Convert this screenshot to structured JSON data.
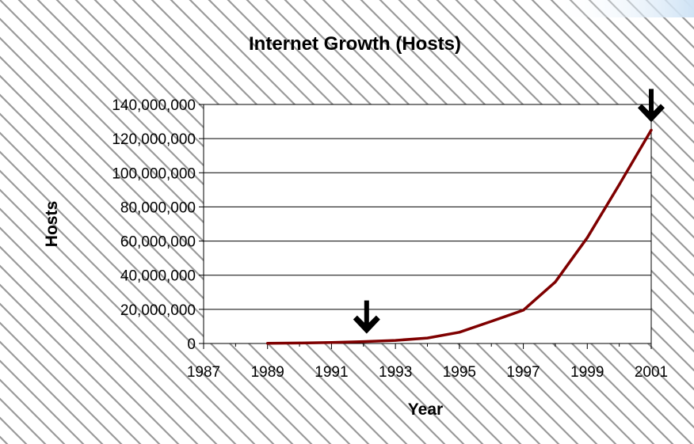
{
  "chart_data": {
    "type": "line",
    "title": "Internet Growth (Hosts)",
    "xlabel": "Year",
    "ylabel": "Hosts",
    "xlim": [
      1987,
      2001
    ],
    "ylim": [
      0,
      140000000
    ],
    "x_ticks": [
      "1987",
      "1989",
      "1991",
      "1993",
      "1995",
      "1997",
      "1999",
      "2001"
    ],
    "y_ticks": [
      "0",
      "20,000,000",
      "40,000,000",
      "60,000,000",
      "80,000,000",
      "100,000,000",
      "120,000,000",
      "140,000,000"
    ],
    "grid": true,
    "legend": "none",
    "series": [
      {
        "color": "#7f0000",
        "x": [
          1989,
          1990,
          1991,
          1992,
          1993,
          1994,
          1995,
          1996,
          1997,
          1998,
          1999,
          2000,
          2001
        ],
        "y": [
          80000,
          300000,
          600000,
          1100000,
          1800000,
          3200000,
          6600000,
          13000000,
          19500000,
          36000000,
          62000000,
          93000000,
          125000000
        ]
      }
    ],
    "annotations": [
      {
        "name": "arrow-down-icon",
        "x": 1992.1,
        "y": 1100000
      },
      {
        "name": "arrow-down-icon",
        "x": 2001,
        "y": 125000000
      }
    ]
  }
}
